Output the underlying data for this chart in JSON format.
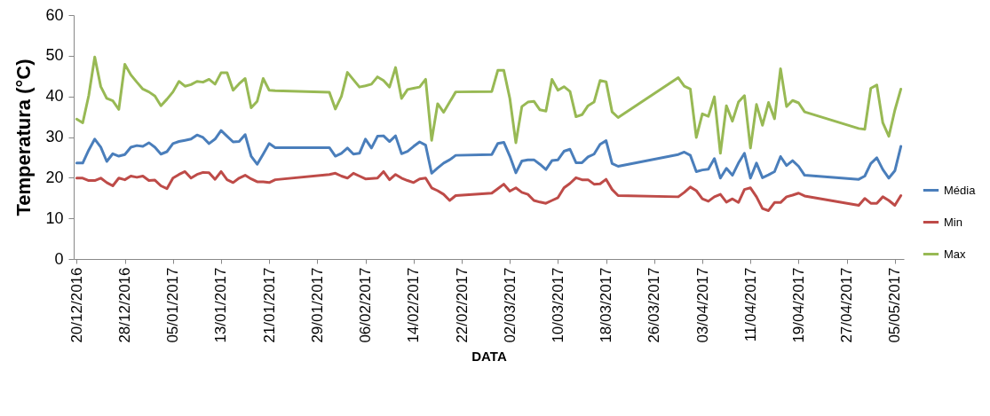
{
  "chart_data": {
    "type": "line",
    "xlabel": "DATA",
    "ylabel": "Temperatura (°C)",
    "x": [
      "2016-12-20",
      "2016-12-21",
      "2016-12-22",
      "2016-12-23",
      "2016-12-24",
      "2016-12-25",
      "2016-12-26",
      "2016-12-27",
      "2016-12-28",
      "2016-12-29",
      "2016-12-30",
      "2016-12-31",
      "2017-01-01",
      "2017-01-02",
      "2017-01-03",
      "2017-01-04",
      "2017-01-05",
      "2017-01-06",
      "2017-01-07",
      "2017-01-08",
      "2017-01-09",
      "2017-01-10",
      "2017-01-11",
      "2017-01-12",
      "2017-01-13",
      "2017-01-14",
      "2017-01-15",
      "2017-01-16",
      "2017-01-17",
      "2017-01-18",
      "2017-01-19",
      "2017-01-20",
      "2017-01-21",
      "2017-01-22",
      "2017-01-31",
      "2017-02-01",
      "2017-02-02",
      "2017-02-03",
      "2017-02-04",
      "2017-02-05",
      "2017-02-06",
      "2017-02-07",
      "2017-02-08",
      "2017-02-09",
      "2017-02-10",
      "2017-02-11",
      "2017-02-12",
      "2017-02-13",
      "2017-02-14",
      "2017-02-15",
      "2017-02-16",
      "2017-02-17",
      "2017-02-18",
      "2017-02-19",
      "2017-02-20",
      "2017-02-21",
      "2017-02-27",
      "2017-02-28",
      "2017-03-01",
      "2017-03-02",
      "2017-03-03",
      "2017-03-04",
      "2017-03-05",
      "2017-03-06",
      "2017-03-07",
      "2017-03-08",
      "2017-03-09",
      "2017-03-10",
      "2017-03-11",
      "2017-03-12",
      "2017-03-13",
      "2017-03-14",
      "2017-03-15",
      "2017-03-16",
      "2017-03-17",
      "2017-03-18",
      "2017-03-19",
      "2017-03-20",
      "2017-03-30",
      "2017-03-31",
      "2017-04-01",
      "2017-04-02",
      "2017-04-03",
      "2017-04-04",
      "2017-04-05",
      "2017-04-06",
      "2017-04-07",
      "2017-04-08",
      "2017-04-09",
      "2017-04-10",
      "2017-04-11",
      "2017-04-12",
      "2017-04-13",
      "2017-04-14",
      "2017-04-15",
      "2017-04-16",
      "2017-04-17",
      "2017-04-18",
      "2017-04-19",
      "2017-04-20",
      "2017-04-29",
      "2017-04-30",
      "2017-05-01",
      "2017-05-02",
      "2017-05-03",
      "2017-05-04",
      "2017-05-05",
      "2017-05-06"
    ],
    "series": [
      {
        "name": "Média",
        "color": "#4a7ebb",
        "values": [
          23.6,
          23.6,
          26.8,
          29.5,
          27.5,
          24.0,
          25.9,
          25.3,
          25.7,
          27.5,
          27.9,
          27.7,
          28.6,
          27.5,
          25.8,
          26.4,
          28.4,
          28.9,
          29.2,
          29.5,
          30.5,
          29.9,
          28.4,
          29.5,
          31.6,
          30.2,
          28.8,
          28.9,
          30.6,
          25.3,
          23.3,
          25.8,
          28.4,
          27.4,
          27.4,
          25.3,
          26.0,
          27.3,
          25.8,
          26.0,
          29.5,
          27.3,
          30.2,
          30.3,
          28.9,
          30.3,
          25.9,
          26.5,
          27.7,
          28.8,
          28.0,
          21.1,
          22.4,
          23.6,
          24.4,
          25.5,
          25.7,
          28.4,
          28.7,
          25.3,
          21.2,
          24.1,
          24.4,
          24.4,
          23.3,
          22.0,
          24.2,
          24.4,
          26.5,
          27.0,
          23.7,
          23.7,
          25.1,
          25.8,
          28.2,
          29.1,
          23.5,
          22.8,
          25.7,
          26.3,
          25.5,
          21.5,
          21.9,
          22.1,
          24.7,
          19.9,
          22.3,
          20.6,
          23.6,
          26.0,
          19.9,
          23.6,
          20.0,
          20.7,
          21.5,
          25.2,
          23.0,
          24.2,
          22.8,
          20.6,
          19.6,
          20.4,
          23.5,
          24.9,
          22.0,
          19.9,
          21.7,
          27.7
        ]
      },
      {
        "name": "Min",
        "color": "#be4b48",
        "values": [
          19.9,
          19.9,
          19.3,
          19.3,
          19.9,
          18.8,
          18.0,
          19.9,
          19.5,
          20.4,
          20.1,
          20.4,
          19.3,
          19.4,
          18.0,
          17.3,
          19.9,
          20.8,
          21.5,
          19.9,
          20.8,
          21.3,
          21.2,
          19.6,
          21.5,
          19.5,
          18.8,
          19.9,
          20.6,
          19.7,
          19.0,
          19.0,
          18.8,
          19.5,
          20.8,
          21.1,
          20.4,
          19.9,
          21.1,
          20.4,
          19.7,
          19.8,
          19.9,
          21.5,
          19.5,
          20.8,
          19.9,
          19.3,
          18.8,
          19.7,
          19.9,
          17.5,
          16.8,
          15.9,
          14.4,
          15.6,
          16.2,
          17.3,
          18.4,
          16.7,
          17.5,
          16.4,
          15.9,
          14.4,
          14.0,
          13.7,
          14.4,
          15.1,
          17.5,
          18.6,
          20.0,
          19.5,
          19.5,
          18.4,
          18.5,
          19.6,
          17.1,
          15.6,
          15.3,
          16.4,
          17.7,
          16.8,
          14.8,
          14.2,
          15.3,
          15.9,
          14.0,
          14.8,
          13.9,
          17.1,
          17.5,
          15.3,
          12.4,
          11.9,
          13.9,
          13.9,
          15.3,
          15.7,
          16.2,
          15.5,
          13.2,
          14.9,
          13.7,
          13.7,
          15.3,
          14.4,
          13.2,
          15.6
        ]
      },
      {
        "name": "Max",
        "color": "#98b954",
        "values": [
          34.4,
          33.5,
          40.2,
          49.7,
          42.4,
          39.5,
          38.9,
          36.8,
          47.9,
          45.3,
          43.5,
          41.8,
          41.1,
          40.1,
          37.7,
          39.3,
          41.1,
          43.7,
          42.5,
          42.9,
          43.7,
          43.5,
          44.2,
          43.0,
          45.8,
          45.8,
          41.5,
          43.1,
          44.4,
          37.2,
          38.8,
          44.4,
          41.5,
          41.4,
          41.0,
          36.9,
          40.0,
          45.9,
          44.1,
          42.3,
          42.6,
          43.0,
          44.8,
          43.9,
          42.3,
          47.1,
          39.5,
          41.7,
          42.0,
          42.3,
          44.2,
          29.2,
          38.2,
          36.1,
          38.6,
          41.1,
          41.2,
          46.4,
          46.4,
          39.5,
          28.6,
          37.5,
          38.6,
          38.8,
          36.7,
          36.4,
          44.2,
          41.5,
          42.4,
          41.2,
          35.0,
          35.5,
          37.7,
          38.6,
          43.9,
          43.6,
          36.2,
          34.8,
          44.6,
          42.5,
          41.8,
          29.9,
          35.7,
          35.1,
          39.9,
          26.0,
          37.7,
          33.9,
          38.6,
          40.2,
          27.3,
          38.0,
          32.9,
          38.5,
          34.5,
          46.8,
          37.5,
          39.0,
          38.4,
          36.2,
          32.1,
          31.9,
          42.0,
          42.8,
          33.5,
          30.2,
          36.6,
          41.8
        ]
      }
    ],
    "xlim": [
      "2016-12-19T12:00",
      "2017-05-06T12:00"
    ],
    "xticks": [
      {
        "value": "2016-12-20",
        "label": "20/12/2016"
      },
      {
        "value": "2016-12-28",
        "label": "28/12/2016"
      },
      {
        "value": "2017-01-05",
        "label": "05/01/2017"
      },
      {
        "value": "2017-01-13",
        "label": "13/01/2017"
      },
      {
        "value": "2017-01-21",
        "label": "21/01/2017"
      },
      {
        "value": "2017-01-29",
        "label": "29/01/2017"
      },
      {
        "value": "2017-02-06",
        "label": "06/02/2017"
      },
      {
        "value": "2017-02-14",
        "label": "14/02/2017"
      },
      {
        "value": "2017-02-22",
        "label": "22/02/2017"
      },
      {
        "value": "2017-03-02",
        "label": "02/03/2017"
      },
      {
        "value": "2017-03-10",
        "label": "10/03/2017"
      },
      {
        "value": "2017-03-18",
        "label": "18/03/2017"
      },
      {
        "value": "2017-03-26",
        "label": "26/03/2017"
      },
      {
        "value": "2017-04-03",
        "label": "03/04/2017"
      },
      {
        "value": "2017-04-11",
        "label": "11/04/2017"
      },
      {
        "value": "2017-04-19",
        "label": "19/04/2017"
      },
      {
        "value": "2017-04-27",
        "label": "27/04/2017"
      },
      {
        "value": "2017-05-05",
        "label": "05/05/2017"
      }
    ],
    "ylim": [
      0,
      60
    ],
    "yticks": [
      0,
      10,
      20,
      30,
      40,
      50,
      60
    ],
    "legend": "right"
  }
}
